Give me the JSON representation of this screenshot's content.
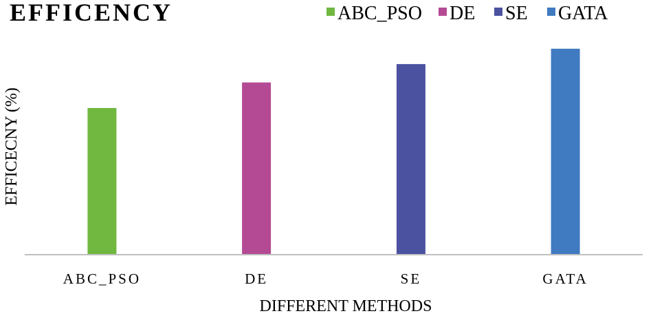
{
  "chart_data": {
    "type": "bar",
    "title": "EFFICENCY",
    "xlabel": "DIFFERENT METHODS",
    "ylabel": "EFFICECNY (%)",
    "categories": [
      "ABC_PSO",
      "DE",
      "SE",
      "GATA"
    ],
    "series": [
      {
        "name": "ABC_PSO",
        "values": [
          71.5,
          null,
          null,
          null
        ],
        "color": "#70b840"
      },
      {
        "name": "DE",
        "values": [
          null,
          84,
          null,
          null
        ],
        "color": "#b44a94"
      },
      {
        "name": "SE",
        "values": [
          null,
          null,
          93,
          null
        ],
        "color": "#4b52a0"
      },
      {
        "name": "GATA",
        "values": [
          null,
          null,
          null,
          100.5
        ],
        "color": "#407ac0"
      }
    ],
    "ylim": [
      0,
      120
    ],
    "y_ticks_shown": false,
    "grid": false,
    "legend_position": "top-right"
  },
  "colors": {
    "axis": "#bfbfbf",
    "text": "#000000"
  }
}
